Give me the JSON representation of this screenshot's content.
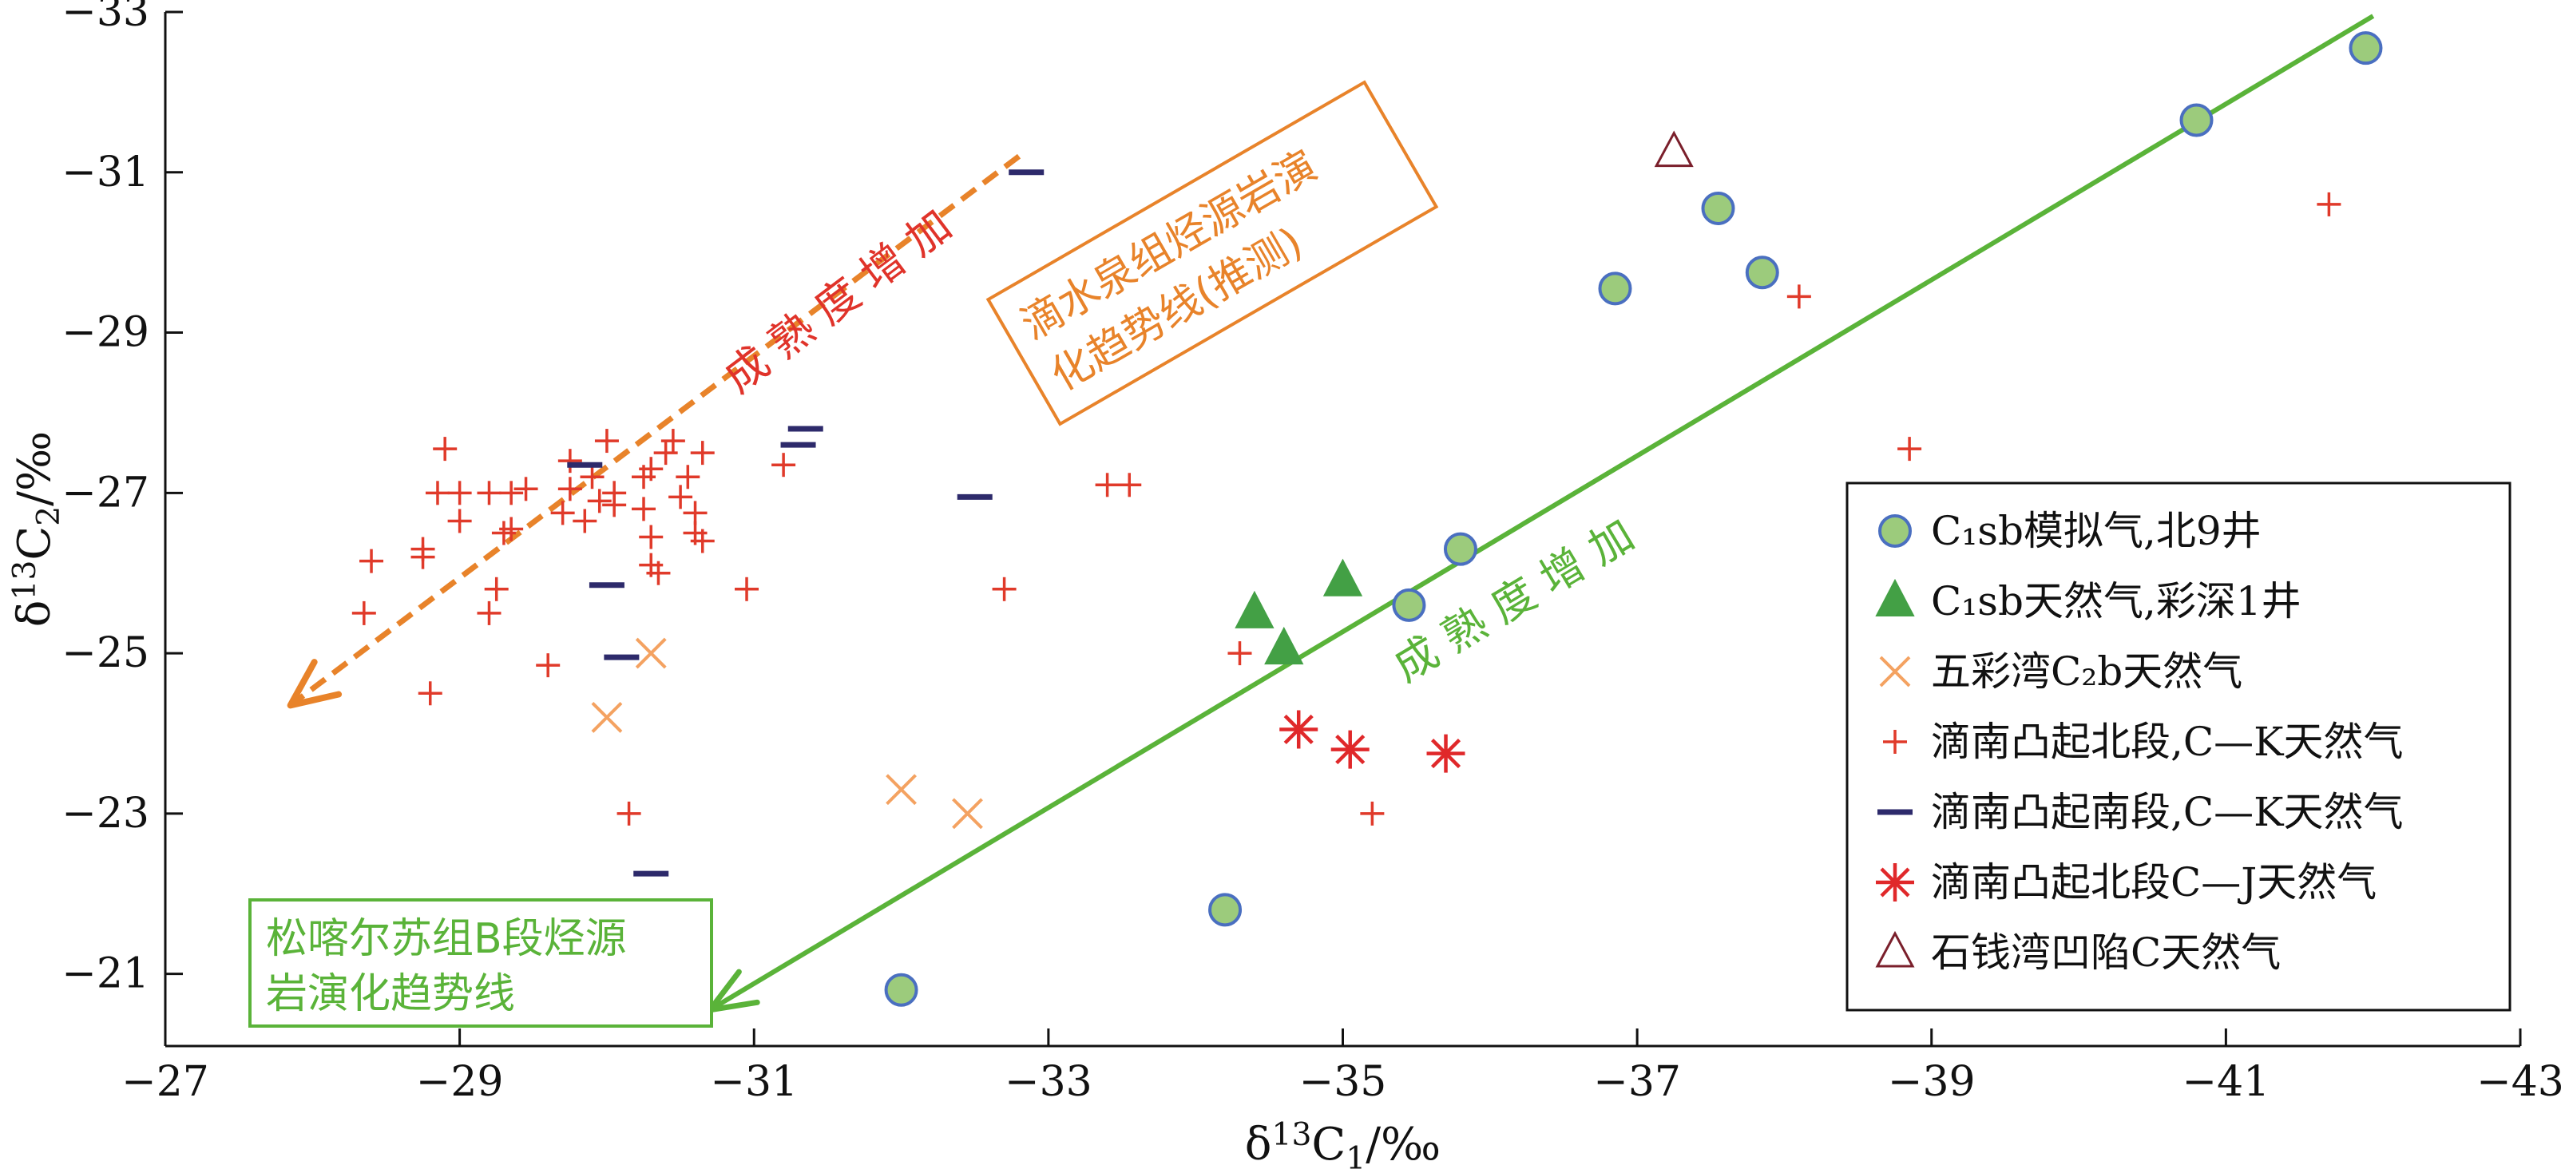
{
  "chart_data": {
    "type": "scatter",
    "xlabel": "δ13C1/‰",
    "ylabel": "δ13C2/‰",
    "x_axis": {
      "min": -27,
      "max": -43,
      "ticks": [
        -27,
        -29,
        -31,
        -33,
        -35,
        -37,
        -39,
        -41,
        -43
      ],
      "tick_labels": [
        "−27",
        "−29",
        "−31",
        "−33",
        "−35",
        "−37",
        "−39",
        "−41",
        "−43"
      ]
    },
    "y_axis": {
      "min": -20.1,
      "max": -33,
      "ticks": [
        -21,
        -23,
        -25,
        -27,
        -29,
        -31,
        -33
      ],
      "tick_labels": [
        "−21",
        "−23",
        "−25",
        "−27",
        "−29",
        "−31",
        "−33"
      ]
    },
    "grid": false,
    "legend_position": "bottom-right",
    "legend": [
      {
        "marker": "circle",
        "label": "C₁sb模拟气,北9井"
      },
      {
        "marker": "triangle-filled",
        "label": "C₁sb天然气,彩深1井"
      },
      {
        "marker": "x",
        "label": "五彩湾C₂b天然气"
      },
      {
        "marker": "plus",
        "label": "滴南凸起北段,C—K天然气"
      },
      {
        "marker": "dash",
        "label": "滴南凸起南段,C—K天然气"
      },
      {
        "marker": "asterisk",
        "label": "滴南凸起北段C—J天然气"
      },
      {
        "marker": "triangle-open",
        "label": "石钱湾凹陷C天然气"
      }
    ],
    "series": [
      {
        "name": "C₁sb模拟气,北9井",
        "marker": "circle",
        "color": "#9ccb7c",
        "edge": "#4a6fc0",
        "points": [
          [
            -32,
            -20.8
          ],
          [
            -34.2,
            -21.8
          ],
          [
            -35.45,
            -25.6
          ],
          [
            -35.8,
            -26.3
          ],
          [
            -36.85,
            -29.55
          ],
          [
            -37.55,
            -30.55
          ],
          [
            -37.85,
            -29.75
          ],
          [
            -40.8,
            -31.65
          ],
          [
            -41.95,
            -32.55
          ]
        ]
      },
      {
        "name": "C₁sb天然气,彩深1井",
        "marker": "triangle-filled",
        "color": "#43a045",
        "points": [
          [
            -34.4,
            -25.5
          ],
          [
            -34.6,
            -25.05
          ],
          [
            -35,
            -25.9
          ]
        ]
      },
      {
        "name": "五彩湾C₂b天然气",
        "marker": "x",
        "color": "#f4a261",
        "points": [
          [
            -30,
            -24.2
          ],
          [
            -30.3,
            -25
          ],
          [
            -32,
            -23.3
          ],
          [
            -32.45,
            -23
          ]
        ]
      },
      {
        "name": "滴南凸起北段,C—K天然气",
        "marker": "plus",
        "color": "#e03a2a",
        "points": [
          [
            -28.4,
            -26.15
          ],
          [
            -28.35,
            -25.5
          ],
          [
            -28.75,
            -26.2
          ],
          [
            -28.75,
            -26.3
          ],
          [
            -28.8,
            -24.5
          ],
          [
            -28.9,
            -27.55
          ],
          [
            -28.85,
            -27.0
          ],
          [
            -29,
            -26.65
          ],
          [
            -29,
            -27.0
          ],
          [
            -29.2,
            -27.0
          ],
          [
            -29.2,
            -25.5
          ],
          [
            -29.25,
            -25.8
          ],
          [
            -29.3,
            -26.5
          ],
          [
            -29.35,
            -26.55
          ],
          [
            -29.35,
            -27.0
          ],
          [
            -29.45,
            -27.05
          ],
          [
            -29.6,
            -24.85
          ],
          [
            -29.7,
            -26.75
          ],
          [
            -29.75,
            -27.05
          ],
          [
            -29.75,
            -27.4
          ],
          [
            -29.85,
            -26.65
          ],
          [
            -29.9,
            -27.2
          ],
          [
            -29.95,
            -26.9
          ],
          [
            -30,
            -27.65
          ],
          [
            -30.05,
            -27.0
          ],
          [
            -30.05,
            -26.85
          ],
          [
            -30.25,
            -27.2
          ],
          [
            -30.25,
            -26.8
          ],
          [
            -30.3,
            -27.3
          ],
          [
            -30.3,
            -26.45
          ],
          [
            -30.3,
            -26.1
          ],
          [
            -30.35,
            -26.0
          ],
          [
            -30.4,
            -27.5
          ],
          [
            -30.45,
            -27.65
          ],
          [
            -30.5,
            -26.95
          ],
          [
            -30.55,
            -27.2
          ],
          [
            -30.6,
            -26.75
          ],
          [
            -30.6,
            -26.5
          ],
          [
            -30.65,
            -26.4
          ],
          [
            -30.65,
            -27.5
          ],
          [
            -30.15,
            -23.0
          ],
          [
            -30.95,
            -25.8
          ],
          [
            -31.2,
            -27.35
          ],
          [
            -32.7,
            -25.8
          ],
          [
            -33.4,
            -27.1
          ],
          [
            -33.55,
            -27.1
          ],
          [
            -34.3,
            -25.0
          ],
          [
            -35.2,
            -23.0
          ],
          [
            -38.1,
            -29.45
          ],
          [
            -38.85,
            -27.55
          ],
          [
            -41.7,
            -30.6
          ]
        ]
      },
      {
        "name": "滴南凸起南段,C—K天然气",
        "marker": "dash",
        "color": "#2d2a6b",
        "points": [
          [
            -29.85,
            -27.35
          ],
          [
            -30.0,
            -25.85
          ],
          [
            -30.1,
            -24.95
          ],
          [
            -30.3,
            -22.25
          ],
          [
            -31.3,
            -27.6
          ],
          [
            -31.35,
            -27.8
          ],
          [
            -32.5,
            -26.95
          ],
          [
            -32.85,
            -31.0
          ]
        ]
      },
      {
        "name": "滴南凸起北段C—J天然气",
        "marker": "asterisk",
        "color": "#e0282a",
        "points": [
          [
            -34.7,
            -24.05
          ],
          [
            -35.05,
            -23.8
          ],
          [
            -35.7,
            -23.75
          ]
        ]
      },
      {
        "name": "石钱湾凹陷C天然气",
        "marker": "triangle-open",
        "color": "#7a1f2b",
        "points": [
          [
            -37.25,
            -31.25
          ]
        ]
      }
    ],
    "trend_lines": [
      {
        "label": "松喀尔苏组B段烃源岩演化趋势线",
        "annotation": "成 熟 度 增 加",
        "color": "#5ab339",
        "style": "solid",
        "from": [
          -42.0,
          -32.95
        ],
        "to": [
          -30.7,
          -20.55
        ]
      },
      {
        "label": "滴水泉组烃源岩演化趋势线(推测)",
        "annotation": "成 熟 度 增 加",
        "color": "#e8832a",
        "style": "dashed",
        "from": [
          -32.8,
          -31.2
        ],
        "to": [
          -27.85,
          -24.35
        ]
      }
    ]
  },
  "colors": {
    "axis": "#111111",
    "green_trend": "#5ab339",
    "orange_trend": "#e8832a",
    "red_text": "#e0332a"
  }
}
